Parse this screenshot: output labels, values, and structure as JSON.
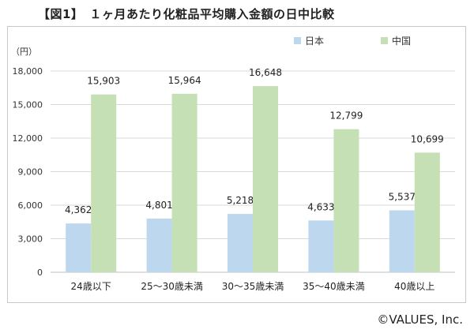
{
  "header": {
    "title": "【図1】　１ヶ月あたり化粧品平均購入金額の日中比較",
    "copyright": "©VALUES, Inc."
  },
  "chart_data": {
    "type": "bar",
    "title": "【図1】　１ヶ月あたり化粧品平均購入金額の日中比較",
    "ylabel": "（円）",
    "ylim": [
      0,
      18000
    ],
    "yticks": [
      0,
      3000,
      6000,
      9000,
      12000,
      15000,
      18000
    ],
    "ytick_labels": [
      "0",
      "3,000",
      "6,000",
      "9,000",
      "12,000",
      "15,000",
      "18,000"
    ],
    "grid": true,
    "legend_position": "top-right",
    "categories": [
      "24歳以下",
      "25～30歳未満",
      "30～35歳未満",
      "35～40歳未満",
      "40歳以上"
    ],
    "series": [
      {
        "name": "日本",
        "color": "#bdd7ee",
        "values": [
          4362,
          4801,
          5218,
          4633,
          5537
        ],
        "labels": [
          "4,362",
          "4,801",
          "5,218",
          "4,633",
          "5,537"
        ]
      },
      {
        "name": "中国",
        "color": "#c5e0b4",
        "values": [
          15903,
          15964,
          16648,
          12799,
          10699
        ],
        "labels": [
          "15,903",
          "15,964",
          "16,648",
          "12,799",
          "10,699"
        ]
      }
    ]
  }
}
